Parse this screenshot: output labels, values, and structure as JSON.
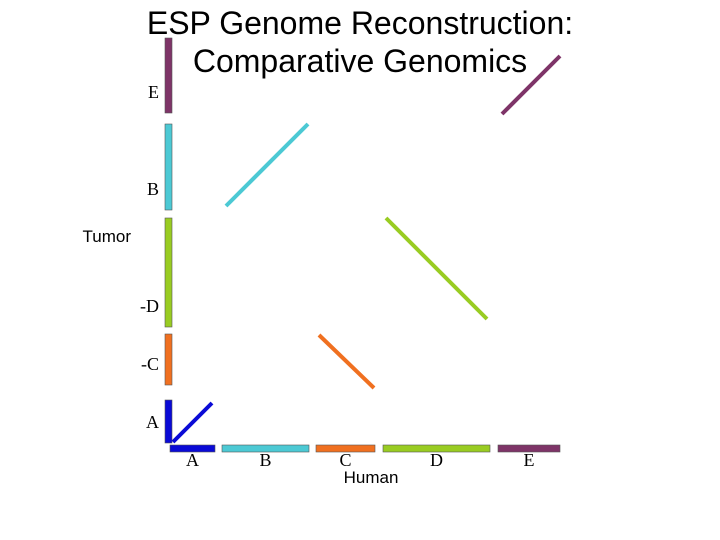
{
  "title": {
    "line1": "ESP Genome Reconstruction:",
    "line2": "Comparative Genomics"
  },
  "axes": {
    "x_title": "Human",
    "y_title": "Tumor"
  },
  "colors": {
    "A": "#0a0ad6",
    "B": "#4cc9d4",
    "C": "#f07020",
    "D": "#99cc22",
    "E": "#7e3468"
  },
  "human_segments": [
    {
      "label": "A",
      "color_key": "A"
    },
    {
      "label": "B",
      "color_key": "B"
    },
    {
      "label": "C",
      "color_key": "C"
    },
    {
      "label": "D",
      "color_key": "D"
    },
    {
      "label": "E",
      "color_key": "E"
    }
  ],
  "tumor_segments": [
    {
      "label": "A",
      "color_key": "A"
    },
    {
      "label": "-C",
      "color_key": "C"
    },
    {
      "label": "-D",
      "color_key": "D"
    },
    {
      "label": "B",
      "color_key": "B"
    },
    {
      "label": "E",
      "color_key": "E"
    }
  ],
  "alignments": [
    {
      "human": "A",
      "tumor": "A",
      "orientation": "forward",
      "color_key": "A"
    },
    {
      "human": "B",
      "tumor": "B",
      "orientation": "forward",
      "color_key": "B"
    },
    {
      "human": "C",
      "tumor": "-C",
      "orientation": "reverse",
      "color_key": "C"
    },
    {
      "human": "D",
      "tumor": "-D",
      "orientation": "reverse",
      "color_key": "D"
    },
    {
      "human": "E",
      "tumor": "E",
      "orientation": "forward",
      "color_key": "E"
    }
  ]
}
